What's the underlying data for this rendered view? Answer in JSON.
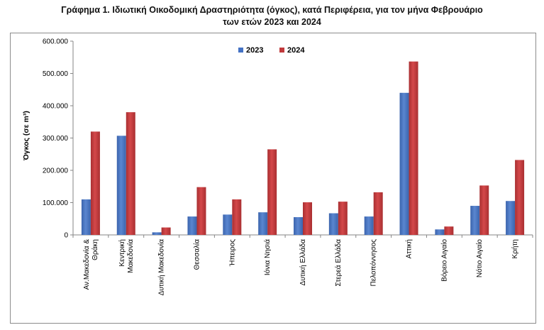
{
  "title_line1": "Γράφημα 1.  Ιδιωτική Οικοδομική Δραστηριότητα (όγκος), κατά Περιφέρεια, για τον μήνα Φεβρουάριο",
  "title_line2": "των ετών 2023 και 2024",
  "colors": {
    "s2023": "#4472c4",
    "s2024": "#c0393b",
    "axis": "#868686"
  },
  "chart_data": {
    "type": "bar",
    "title": "Γράφημα 1.  Ιδιωτική Οικοδομική Δραστηριότητα (όγκος), κατά Περιφέρεια, για τον μήνα Φεβρουάριο των ετών 2023 και 2024",
    "ylabel": "Όγκος (σε m³)",
    "xlabel": "",
    "ylim": [
      0,
      600000
    ],
    "yticks": [
      "0",
      "100.000",
      "200.000",
      "300.000",
      "400.000",
      "500.000",
      "600.000"
    ],
    "legend_position": "top-center",
    "grid": false,
    "categories": [
      [
        "Αν.Μακεδονία &",
        "Θράκη"
      ],
      [
        "Κεντρική",
        "Μακεδονία"
      ],
      [
        "Δυτική Μακεδονία"
      ],
      [
        "Θεσσαλία"
      ],
      [
        "Ήπειρος"
      ],
      [
        "Ιόνια Νησιά"
      ],
      [
        "Δυτική Ελλάδα"
      ],
      [
        "Στερεά Ελλάδα"
      ],
      [
        "Πελοπόννησος"
      ],
      [
        "Αττική"
      ],
      [
        "Βόρειο Αιγαίο"
      ],
      [
        "Νότιο Αιγαίο"
      ],
      [
        "Κρήτη"
      ]
    ],
    "series": [
      {
        "name": "2023",
        "values": [
          110000,
          307000,
          8000,
          57000,
          63000,
          70000,
          55000,
          67000,
          57000,
          440000,
          17000,
          90000,
          105000
        ]
      },
      {
        "name": "2024",
        "values": [
          320000,
          380000,
          23000,
          148000,
          110000,
          265000,
          101000,
          103000,
          132000,
          537000,
          26000,
          153000,
          232000
        ]
      }
    ]
  }
}
